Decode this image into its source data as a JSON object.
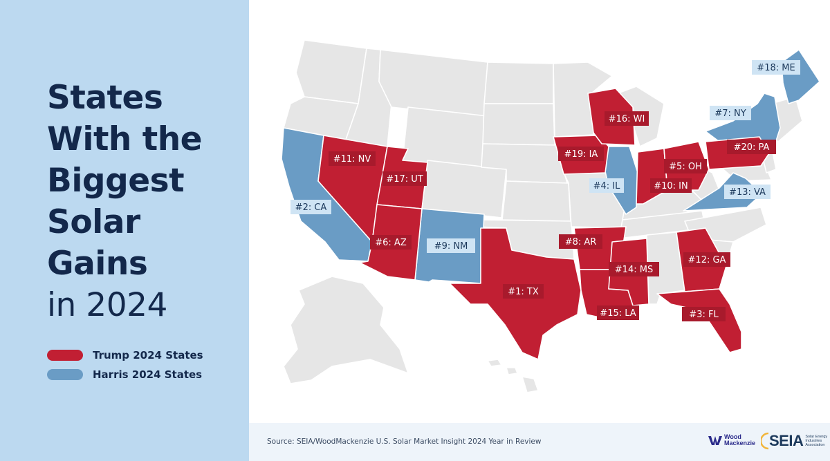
{
  "title": {
    "line1": "States",
    "line2": "With the",
    "line3": "Biggest",
    "line4": "Solar",
    "line5": "Gains",
    "line6": "in 2024"
  },
  "legend": [
    {
      "label": "Trump 2024 States",
      "color": "#c11f33"
    },
    {
      "label": "Harris 2024 States",
      "color": "#6a9cc5"
    }
  ],
  "colors": {
    "red": "#c11f33",
    "blue": "#6a9cc5",
    "grey": "#e6e6e6",
    "label_red_bg": "#a81a2c",
    "label_blue_bg": "#cfe4f4",
    "label_blue_text": "#1d3a5c"
  },
  "states": [
    {
      "abbr": "TX",
      "label": "#1: TX",
      "party": "trump"
    },
    {
      "abbr": "CA",
      "label": "#2: CA",
      "party": "harris"
    },
    {
      "abbr": "FL",
      "label": "#3: FL",
      "party": "trump"
    },
    {
      "abbr": "IL",
      "label": "#4: IL",
      "party": "harris"
    },
    {
      "abbr": "OH",
      "label": "#5: OH",
      "party": "trump"
    },
    {
      "abbr": "AZ",
      "label": "#6: AZ",
      "party": "trump"
    },
    {
      "abbr": "NY",
      "label": "#7: NY",
      "party": "harris"
    },
    {
      "abbr": "AR",
      "label": "#8: AR",
      "party": "trump"
    },
    {
      "abbr": "NM",
      "label": "#9: NM",
      "party": "harris"
    },
    {
      "abbr": "IN",
      "label": "#10: IN",
      "party": "trump"
    },
    {
      "abbr": "NV",
      "label": "#11: NV",
      "party": "trump"
    },
    {
      "abbr": "GA",
      "label": "#12: GA",
      "party": "trump"
    },
    {
      "abbr": "VA",
      "label": "#13: VA",
      "party": "harris"
    },
    {
      "abbr": "MS",
      "label": "#14: MS",
      "party": "trump"
    },
    {
      "abbr": "LA",
      "label": "#15: LA",
      "party": "trump"
    },
    {
      "abbr": "WI",
      "label": "#16: WI",
      "party": "trump"
    },
    {
      "abbr": "UT",
      "label": "#17: UT",
      "party": "trump"
    },
    {
      "abbr": "ME",
      "label": "#18: ME",
      "party": "harris"
    },
    {
      "abbr": "IA",
      "label": "#19: IA",
      "party": "trump"
    },
    {
      "abbr": "PA",
      "label": "#20: PA",
      "party": "trump"
    }
  ],
  "source": "Source: SEIA/WoodMackenzie U.S. Solar Market Insight 2024 Year in Review",
  "logos": {
    "woodmac_line1": "Wood",
    "woodmac_line2": "Mackenzie",
    "seia": "SEIA",
    "seia_sub": "Solar Energy Industries Association"
  }
}
